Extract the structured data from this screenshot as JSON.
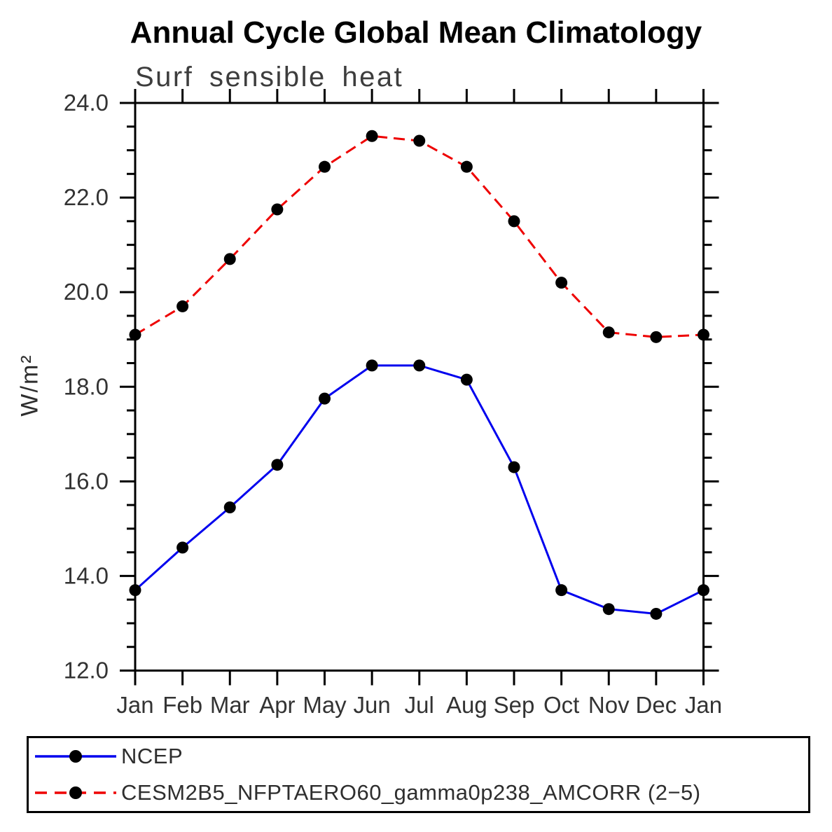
{
  "title": "Annual Cycle Global Mean Climatology",
  "subtitle": "Surf sensible heat",
  "ylabel": "W/m²",
  "chart_data": {
    "type": "line",
    "title": "Annual Cycle Global Mean Climatology",
    "subtitle": "Surf sensible heat",
    "xlabel": "",
    "ylabel": "W/m²",
    "categories": [
      "Jan",
      "Feb",
      "Mar",
      "Apr",
      "May",
      "Jun",
      "Jul",
      "Aug",
      "Sep",
      "Oct",
      "Nov",
      "Dec",
      "Jan"
    ],
    "series": [
      {
        "name": "NCEP",
        "color": "#0000ee",
        "style": "solid",
        "values": [
          13.7,
          14.6,
          15.45,
          16.35,
          17.75,
          18.45,
          18.45,
          18.15,
          16.3,
          13.7,
          13.3,
          13.2,
          13.7
        ]
      },
      {
        "name": "CESM2B5_NFPTAERO60_gamma0p238_AMCORR (2−5)",
        "color": "#ee0000",
        "style": "dashed",
        "values": [
          19.1,
          19.7,
          20.7,
          21.75,
          22.65,
          23.3,
          23.2,
          22.65,
          21.5,
          20.2,
          19.15,
          19.05,
          19.1
        ]
      }
    ],
    "ylim": [
      12.0,
      24.0
    ],
    "ytick_major": 2.0,
    "ytick_minor": 0.5,
    "ytick_labels": [
      "12.0",
      "14.0",
      "16.0",
      "18.0",
      "20.0",
      "22.0",
      "24.0"
    ],
    "marker": "circle",
    "marker_color": "#000000",
    "grid": false,
    "legend_position": "bottom"
  }
}
